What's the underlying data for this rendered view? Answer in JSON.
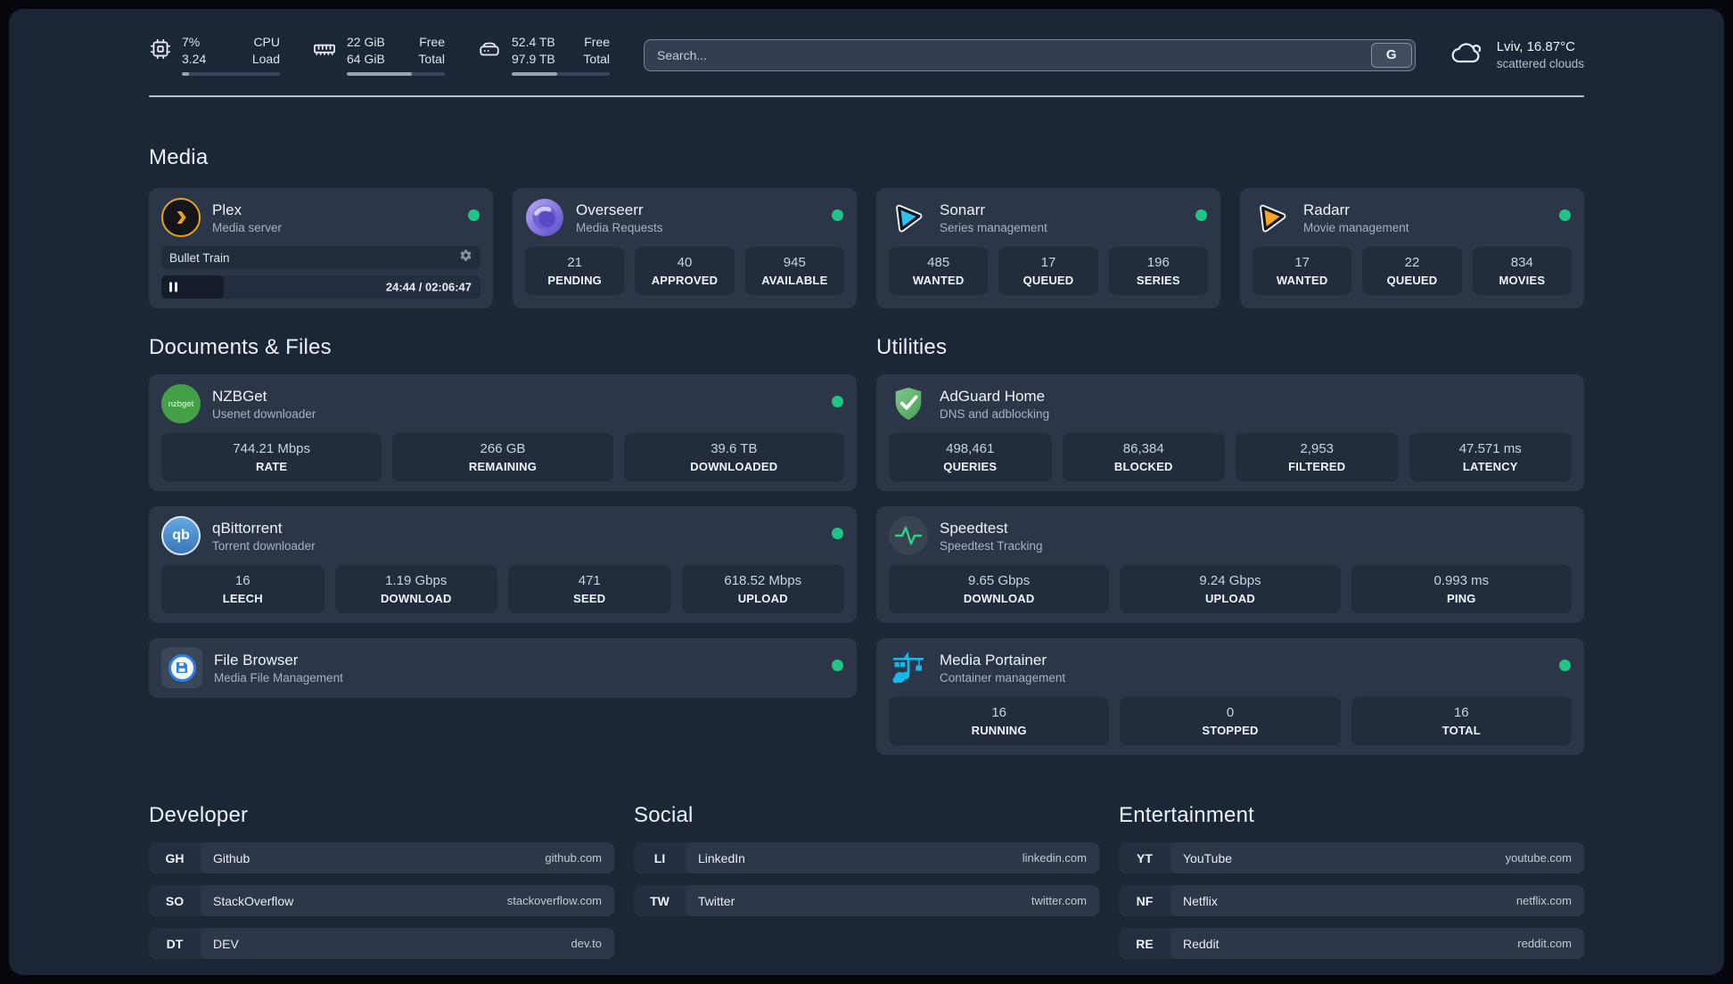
{
  "topbar": {
    "cpu": {
      "value_top": "7%",
      "value_bottom": "3.24",
      "label_top": "CPU",
      "label_bottom": "Load",
      "progress_pct": 7,
      "icon": "cpu-chip-icon"
    },
    "ram": {
      "value_top": "22 GiB",
      "value_bottom": "64 GiB",
      "label_top": "Free",
      "label_bottom": "Total",
      "progress_pct": 66,
      "icon": "memory-icon"
    },
    "disk": {
      "value_top": "52.4 TB",
      "value_bottom": "97.9 TB",
      "label_top": "Free",
      "label_bottom": "Total",
      "progress_pct": 46,
      "icon": "hard-drive-icon"
    },
    "search": {
      "placeholder": "Search...",
      "button_label": "G"
    },
    "weather": {
      "location_temp": "Lviv, 16.87°C",
      "condition": "scattered clouds",
      "icon": "cloud-icon"
    }
  },
  "colors": {
    "status_online": "#1fc584",
    "plex_orange": "#e9a21b",
    "sonarr_blue": "#2fc0ee",
    "radarr_orange": "#f6a71f",
    "portainer_blue": "#16b8ea",
    "adguard_green": "#4a9e58",
    "speedtest_green": "#2bd487"
  },
  "media": {
    "title": "Media",
    "apps": [
      {
        "name": "Plex",
        "desc": "Media server",
        "icon": "plex-icon",
        "online": true,
        "player": {
          "track": "Bullet Train",
          "time_display": "24:44 / 02:06:47",
          "progress_pct": 19.5
        }
      },
      {
        "name": "Overseerr",
        "desc": "Media Requests",
        "icon": "overseerr-icon",
        "online": true,
        "stats": [
          {
            "value": "21",
            "label": "PENDING"
          },
          {
            "value": "40",
            "label": "APPROVED"
          },
          {
            "value": "945",
            "label": "AVAILABLE"
          }
        ]
      },
      {
        "name": "Sonarr",
        "desc": "Series management",
        "icon": "sonarr-icon",
        "online": true,
        "stats": [
          {
            "value": "485",
            "label": "WANTED"
          },
          {
            "value": "17",
            "label": "QUEUED"
          },
          {
            "value": "196",
            "label": "SERIES"
          }
        ]
      },
      {
        "name": "Radarr",
        "desc": "Movie management",
        "icon": "radarr-icon",
        "online": true,
        "stats": [
          {
            "value": "17",
            "label": "WANTED"
          },
          {
            "value": "22",
            "label": "QUEUED"
          },
          {
            "value": "834",
            "label": "MOVIES"
          }
        ]
      }
    ]
  },
  "documents": {
    "title": "Documents & Files",
    "apps": [
      {
        "name": "NZBGet",
        "desc": "Usenet downloader",
        "icon": "nzbget-icon",
        "online": true,
        "stats": [
          {
            "value": "744.21 Mbps",
            "label": "RATE"
          },
          {
            "value": "266 GB",
            "label": "REMAINING"
          },
          {
            "value": "39.6 TB",
            "label": "DOWNLOADED"
          }
        ]
      },
      {
        "name": "qBittorrent",
        "desc": "Torrent downloader",
        "icon": "qbittorrent-icon",
        "online": true,
        "stats": [
          {
            "value": "16",
            "label": "LEECH"
          },
          {
            "value": "1.19 Gbps",
            "label": "DOWNLOAD"
          },
          {
            "value": "471",
            "label": "SEED"
          },
          {
            "value": "618.52 Mbps",
            "label": "UPLOAD"
          }
        ]
      },
      {
        "name": "File Browser",
        "desc": "Media File Management",
        "icon": "file-browser-icon",
        "online": true,
        "stats": []
      }
    ]
  },
  "utilities": {
    "title": "Utilities",
    "apps": [
      {
        "name": "AdGuard Home",
        "desc": "DNS and adblocking",
        "icon": "adguard-icon",
        "online": false,
        "stats": [
          {
            "value": "498,461",
            "label": "QUERIES"
          },
          {
            "value": "86,384",
            "label": "BLOCKED"
          },
          {
            "value": "2,953",
            "label": "FILTERED"
          },
          {
            "value": "47.571 ms",
            "label": "LATENCY"
          }
        ]
      },
      {
        "name": "Speedtest",
        "desc": "Speedtest Tracking",
        "icon": "speedtest-icon",
        "online": false,
        "stats": [
          {
            "value": "9.65 Gbps",
            "label": "DOWNLOAD"
          },
          {
            "value": "9.24 Gbps",
            "label": "UPLOAD"
          },
          {
            "value": "0.993 ms",
            "label": "PING"
          }
        ]
      },
      {
        "name": "Media Portainer",
        "desc": "Container management",
        "icon": "portainer-icon",
        "online": true,
        "stats": [
          {
            "value": "16",
            "label": "RUNNING"
          },
          {
            "value": "0",
            "label": "STOPPED"
          },
          {
            "value": "16",
            "label": "TOTAL"
          }
        ]
      }
    ]
  },
  "links": {
    "developer": {
      "title": "Developer",
      "items": [
        {
          "abbr": "GH",
          "name": "Github",
          "url": "github.com"
        },
        {
          "abbr": "SO",
          "name": "StackOverflow",
          "url": "stackoverflow.com"
        },
        {
          "abbr": "DT",
          "name": "DEV",
          "url": "dev.to"
        }
      ]
    },
    "social": {
      "title": "Social",
      "items": [
        {
          "abbr": "LI",
          "name": "LinkedIn",
          "url": "linkedin.com"
        },
        {
          "abbr": "TW",
          "name": "Twitter",
          "url": "twitter.com"
        }
      ]
    },
    "entertainment": {
      "title": "Entertainment",
      "items": [
        {
          "abbr": "YT",
          "name": "YouTube",
          "url": "youtube.com"
        },
        {
          "abbr": "NF",
          "name": "Netflix",
          "url": "netflix.com"
        },
        {
          "abbr": "RE",
          "name": "Reddit",
          "url": "reddit.com"
        }
      ]
    }
  }
}
